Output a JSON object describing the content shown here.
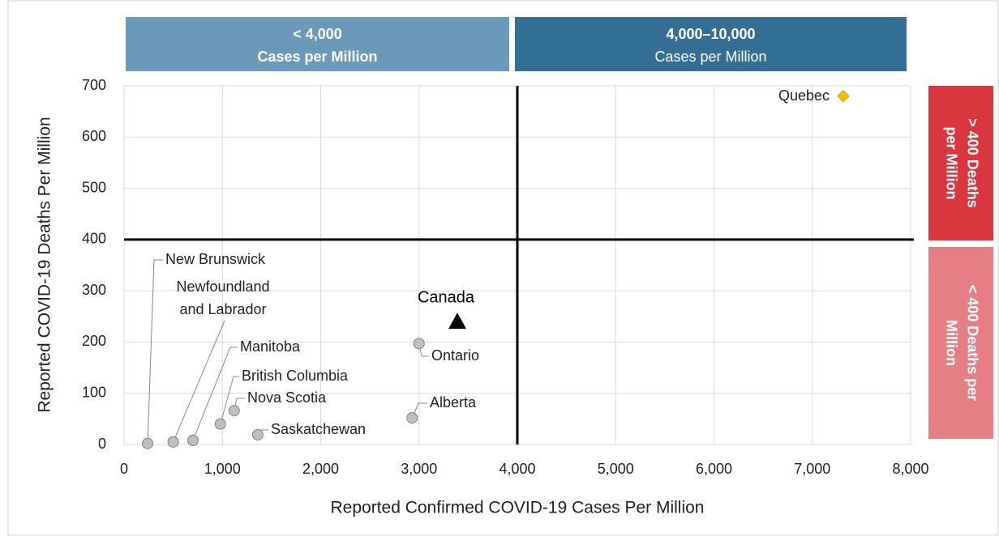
{
  "chart_data": {
    "type": "scatter",
    "x_label": "Reported Confirmed COVID-19 Cases Per Million",
    "y_label": "Reported COVID-19 Deaths Per Million",
    "xlim": [
      0,
      8000
    ],
    "ylim": [
      0,
      700
    ],
    "xticks": [
      0,
      {
        "value": 1000,
        "label": "1,000"
      },
      {
        "value": 2000,
        "label": "2,000"
      },
      {
        "value": 3000,
        "label": "3,000"
      },
      {
        "value": 4000,
        "label": "4,000"
      },
      {
        "value": 5000,
        "label": "5,000"
      },
      {
        "value": 6000,
        "label": "6,000"
      },
      {
        "value": 7000,
        "label": "7,000"
      },
      {
        "value": 8000,
        "label": "8,000"
      }
    ],
    "yticks": [
      0,
      100,
      200,
      300,
      400,
      500,
      600,
      700
    ],
    "grid": true,
    "thresholds": {
      "x": 4000,
      "y": 400
    },
    "points": [
      {
        "label": [
          "New Brunswick"
        ],
        "x": 240,
        "y": 2,
        "marker": "circle",
        "color": "#bfbfbf"
      },
      {
        "label": [
          "Newfoundland",
          "and Labrador"
        ],
        "x": 500,
        "y": 5,
        "marker": "circle",
        "color": "#bfbfbf"
      },
      {
        "label": [
          "Manitoba"
        ],
        "x": 700,
        "y": 8,
        "marker": "circle",
        "color": "#bfbfbf"
      },
      {
        "label": [
          "British Columbia"
        ],
        "x": 980,
        "y": 40,
        "marker": "circle",
        "color": "#bfbfbf"
      },
      {
        "label": [
          "Nova Scotia"
        ],
        "x": 1120,
        "y": 66,
        "marker": "circle",
        "color": "#bfbfbf"
      },
      {
        "label": [
          "Saskatchewan"
        ],
        "x": 1360,
        "y": 19,
        "marker": "circle",
        "color": "#bfbfbf"
      },
      {
        "label": [
          "Alberta"
        ],
        "x": 2930,
        "y": 52,
        "marker": "circle",
        "color": "#bfbfbf"
      },
      {
        "label": [
          "Ontario"
        ],
        "x": 3000,
        "y": 197,
        "marker": "circle",
        "color": "#bfbfbf"
      },
      {
        "label": [
          "Canada"
        ],
        "x": 3390,
        "y": 240,
        "marker": "triangle",
        "color": "#000000"
      },
      {
        "label": [
          "Quebec"
        ],
        "x": 7315,
        "y": 680,
        "marker": "diamond",
        "color": "#ffc000"
      }
    ],
    "quadrant_labels": {
      "top": [
        {
          "lines": [
            "< 4,000",
            "Cases per Million"
          ],
          "color": "#6a9aba"
        },
        {
          "lines": [
            "4,000–10,000",
            "Cases per Million"
          ],
          "color": "#336e94"
        }
      ],
      "right": [
        {
          "lines": [
            "> 400 Deaths",
            "per Million"
          ],
          "color": "#d9363e"
        },
        {
          "lines": [
            "< 400 Deaths per",
            "Million"
          ],
          "color": "#e57f84"
        }
      ]
    }
  }
}
